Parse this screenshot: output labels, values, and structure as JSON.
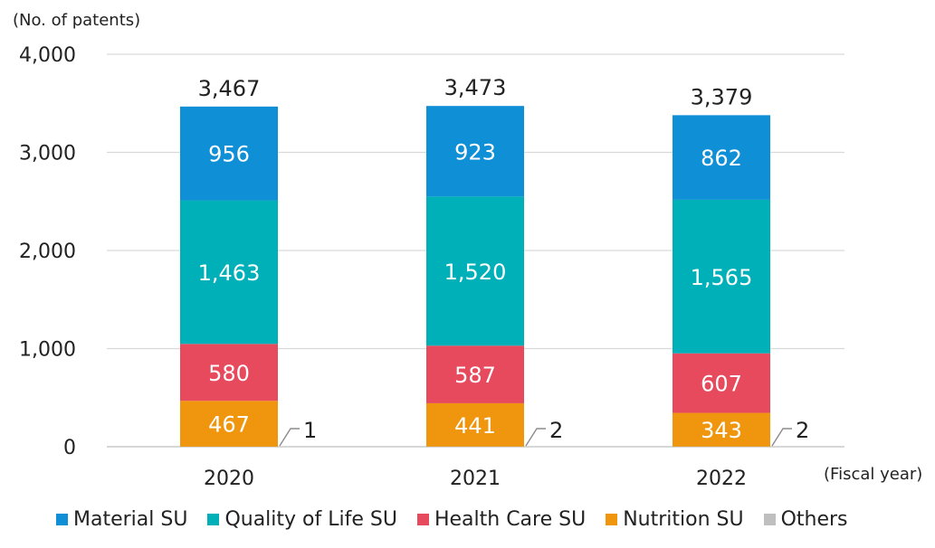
{
  "chart_data": {
    "type": "bar",
    "stacked": true,
    "unit_label": "(No. of patents)",
    "x_unit_label": "(Fiscal year)",
    "categories": [
      "2020",
      "2021",
      "2022"
    ],
    "ylim": [
      0,
      4000
    ],
    "yticks": [
      "0",
      "1,000",
      "2,000",
      "3,000",
      "4,000"
    ],
    "ytick_values": [
      0,
      1000,
      2000,
      3000,
      4000
    ],
    "grid": true,
    "legend_position": "bottom",
    "series": [
      {
        "name": "Material SU",
        "color": "#0f8fd6",
        "values": [
          956,
          923,
          862
        ],
        "labels": [
          "956",
          "923",
          "862"
        ]
      },
      {
        "name": "Quality of Life SU",
        "color": "#00b0b9",
        "values": [
          1463,
          1520,
          1565
        ],
        "labels": [
          "1,463",
          "1,520",
          "1,565"
        ]
      },
      {
        "name": "Health Care SU",
        "color": "#e64a5c",
        "values": [
          580,
          587,
          607
        ],
        "labels": [
          "580",
          "587",
          "607"
        ]
      },
      {
        "name": "Nutrition SU",
        "color": "#f0960e",
        "values": [
          467,
          441,
          343
        ],
        "labels": [
          "467",
          "441",
          "343"
        ]
      },
      {
        "name": "Others",
        "color": "#bfbfbf",
        "values": [
          1,
          2,
          2
        ],
        "labels": [
          "1",
          "2",
          "2"
        ]
      }
    ],
    "totals": [
      "3,467",
      "3,473",
      "3,379"
    ],
    "total_values": [
      3467,
      3473,
      3379
    ]
  }
}
